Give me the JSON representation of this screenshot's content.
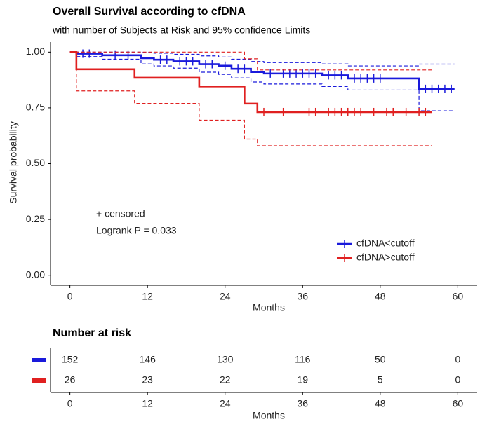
{
  "chart_data": {
    "type": "kaplan-meier",
    "title": "Overall Survival according to cfDNA",
    "subtitle": "with number of Subjects at Risk and 95% confidence Limits",
    "xlabel": "Months",
    "ylabel": "Survival probability",
    "xlim": [
      -3,
      63
    ],
    "ylim": [
      -0.045,
      1.045
    ],
    "xticks": [
      0,
      12,
      24,
      36,
      48,
      60
    ],
    "yticks": [
      {
        "value": 0,
        "label": "0.00"
      },
      {
        "value": 0.25,
        "label": "0.25"
      },
      {
        "value": 0.5,
        "label": "0.50"
      },
      {
        "value": 0.75,
        "label": "0.75"
      },
      {
        "value": 1,
        "label": "1.00"
      }
    ],
    "annotations": [
      "+ censored",
      "Logrank P = 0.033"
    ],
    "legend": "bottom-right",
    "series": [
      {
        "name": "cfDNA<cutoff",
        "color": "#1a1adb",
        "x": [
          0,
          1,
          5,
          11,
          13,
          16,
          20,
          23,
          25,
          28,
          30,
          39,
          43,
          54,
          59.5
        ],
        "values": [
          1,
          0.993,
          0.986,
          0.973,
          0.966,
          0.959,
          0.946,
          0.939,
          0.925,
          0.911,
          0.904,
          0.896,
          0.882,
          0.835,
          0.835
        ],
        "lower": [
          1,
          0.98,
          0.968,
          0.947,
          0.938,
          0.928,
          0.91,
          0.9,
          0.884,
          0.866,
          0.857,
          0.846,
          0.83,
          0.737,
          0.737
        ],
        "upper": [
          1,
          1,
          1,
          0.999,
          0.995,
          0.99,
          0.983,
          0.978,
          0.968,
          0.958,
          0.953,
          0.947,
          0.938,
          0.946,
          0.946
        ],
        "censored_x": [
          2,
          3,
          7,
          9,
          14,
          15,
          17,
          18,
          19,
          21,
          22,
          24,
          26,
          27,
          31,
          33,
          34,
          35,
          36,
          37,
          38,
          40,
          41,
          42,
          44,
          45,
          46,
          47,
          48,
          55,
          56,
          57,
          58,
          59
        ],
        "censored_values": [
          0.993,
          0.993,
          0.986,
          0.986,
          0.966,
          0.966,
          0.959,
          0.959,
          0.959,
          0.946,
          0.946,
          0.939,
          0.925,
          0.925,
          0.904,
          0.904,
          0.904,
          0.904,
          0.904,
          0.904,
          0.904,
          0.896,
          0.896,
          0.896,
          0.882,
          0.882,
          0.882,
          0.882,
          0.882,
          0.835,
          0.835,
          0.835,
          0.835,
          0.835
        ]
      },
      {
        "name": "cfDNA>cutoff",
        "color": "#e02020",
        "x": [
          0,
          1,
          10,
          20,
          27,
          29,
          56
        ],
        "values": [
          1,
          0.923,
          0.885,
          0.846,
          0.769,
          0.731,
          0.731
        ],
        "lower": [
          1,
          0.826,
          0.77,
          0.695,
          0.61,
          0.58,
          0.58
        ],
        "upper": [
          1,
          1,
          1,
          1,
          0.97,
          0.92,
          0.92
        ],
        "censored_x": [
          30,
          33,
          37,
          38,
          40,
          41,
          42,
          43,
          44,
          45,
          47,
          49,
          50,
          52,
          54,
          55
        ],
        "censored_values": [
          0.731,
          0.731,
          0.731,
          0.731,
          0.731,
          0.731,
          0.731,
          0.731,
          0.731,
          0.731,
          0.731,
          0.731,
          0.731,
          0.731,
          0.731,
          0.731
        ]
      }
    ],
    "risk_table": {
      "title": "Number at risk",
      "xlabel": "Months",
      "xticks": [
        0,
        12,
        24,
        36,
        48,
        60
      ],
      "rows": [
        {
          "color": "#1a1adb",
          "values": [
            152,
            146,
            130,
            116,
            50,
            0
          ]
        },
        {
          "color": "#e02020",
          "values": [
            26,
            23,
            22,
            19,
            5,
            0
          ]
        }
      ]
    }
  }
}
